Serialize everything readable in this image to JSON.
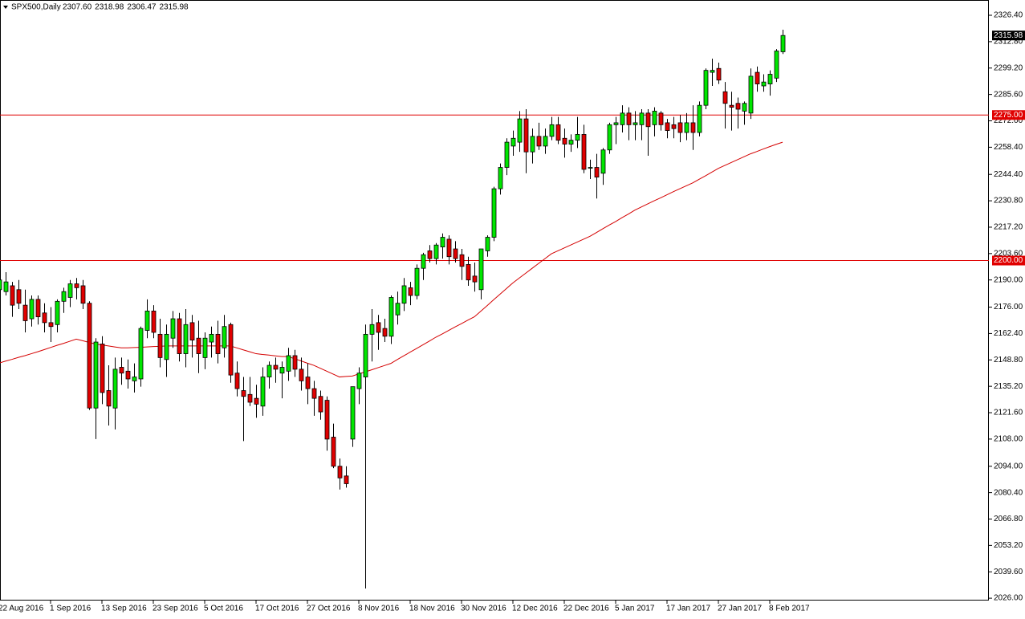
{
  "chart_data": {
    "type": "candlestick",
    "title": "SPX500,Daily",
    "header_ohlc": [
      "2307.60",
      "2318.98",
      "2306.47",
      "2315.98"
    ],
    "up_color": "#00e600",
    "down_color": "#e00000",
    "categories": [
      "22 Aug 2016",
      null,
      null,
      null,
      null,
      null,
      null,
      null,
      "1 Sep 2016",
      null,
      null,
      null,
      null,
      null,
      null,
      null,
      "13 Sep 2016",
      null,
      null,
      null,
      null,
      null,
      null,
      null,
      "23 Sep 2016",
      null,
      null,
      null,
      null,
      null,
      null,
      null,
      "5 Oct 2016",
      null,
      null,
      null,
      null,
      null,
      null,
      null,
      "17 Oct 2016",
      null,
      null,
      null,
      null,
      null,
      null,
      null,
      "27 Oct 2016",
      null,
      null,
      null,
      null,
      null,
      null,
      null,
      "8 Nov 2016",
      null,
      null,
      null,
      null,
      null,
      null,
      null,
      "18 Nov 2016",
      null,
      null,
      null,
      null,
      null,
      null,
      null,
      "30 Nov 2016",
      null,
      null,
      null,
      null,
      null,
      null,
      null,
      "12 Dec 2016",
      null,
      null,
      null,
      null,
      null,
      null,
      null,
      "22 Dec 2016",
      null,
      null,
      null,
      null,
      null,
      null,
      null,
      "5 Jan 2017",
      null,
      null,
      null,
      null,
      null,
      null,
      null,
      "17 Jan 2017",
      null,
      null,
      null,
      null,
      null,
      null,
      null,
      "27 Jan 2017",
      null,
      null,
      null,
      null,
      null,
      null,
      null,
      "8 Feb 2017",
      null,
      null
    ],
    "open": [
      2185,
      2184,
      2187,
      2185,
      2177,
      2170,
      2180,
      2173,
      2168,
      2167,
      2179,
      2181,
      2188,
      2187,
      2178,
      2124,
      2157,
      2133,
      2124,
      2145,
      2143,
      2138,
      2139,
      2164,
      2174,
      2162,
      2149,
      2160,
      2170,
      2152,
      2168,
      2160,
      2150,
      2158,
      2162,
      2155,
      2167,
      2142,
      2133,
      2131,
      2129,
      2125,
      2140,
      2146,
      2142,
      2143,
      2151,
      2144,
      2140,
      2134,
      2130,
      2128,
      2109,
      2094,
      2089,
      2108,
      2134,
      2140,
      2162,
      2168,
      2165,
      2161,
      2172,
      2178,
      2186,
      2182,
      2196,
      2205,
      2201,
      2207,
      2211,
      2206,
      2203,
      2198,
      2192,
      2185,
      2205,
      2212,
      2237,
      2248,
      2259,
      2261,
      2273,
      2256,
      2264,
      2259,
      2264,
      2270,
      2263,
      2260,
      2262,
      2265,
      2248,
      2248,
      2245,
      2257,
      2270,
      2270,
      2276,
      2270,
      2270,
      2276,
      2270,
      2276,
      2271,
      2270,
      2271,
      2266,
      2271,
      2266,
      2280,
      2297,
      2299,
      2287,
      2280,
      2281,
      2277,
      2276,
      2297,
      2290,
      2291,
      2294,
      2307.6
    ],
    "high": [
      2194,
      2194,
      2189,
      2190,
      2185,
      2182,
      2182,
      2178,
      2176,
      2180,
      2186,
      2190,
      2191,
      2190,
      2179,
      2160,
      2161,
      2146,
      2150,
      2150,
      2149,
      2147,
      2166,
      2180,
      2177,
      2170,
      2167,
      2174,
      2173,
      2175,
      2172,
      2169,
      2163,
      2166,
      2169,
      2172,
      2168,
      2148,
      2140,
      2140,
      2136,
      2145,
      2148,
      2150,
      2148,
      2155,
      2154,
      2150,
      2147,
      2138,
      2133,
      2130,
      2116,
      2098,
      2094,
      2135,
      2145,
      2167,
      2175,
      2172,
      2170,
      2182,
      2184,
      2191,
      2189,
      2198,
      2204,
      2208,
      2209,
      2214,
      2213,
      2210,
      2206,
      2202,
      2199,
      2206,
      2213,
      2238,
      2250,
      2263,
      2267,
      2277,
      2278,
      2268,
      2271,
      2268,
      2274,
      2274,
      2268,
      2265,
      2274,
      2270,
      2252,
      2255,
      2258,
      2271,
      2274,
      2280,
      2279,
      2277,
      2278,
      2278,
      2279,
      2277,
      2273,
      2274,
      2275,
      2276,
      2280,
      2282,
      2299,
      2304,
      2302,
      2292,
      2287,
      2284,
      2282,
      2299,
      2300,
      2296,
      2298,
      2309,
      2318.98
    ],
    "low": [
      2182,
      2182,
      2171,
      2175,
      2163,
      2166,
      2167,
      2163,
      2158,
      2163,
      2173,
      2176,
      2180,
      2175,
      2123,
      2108,
      2126,
      2115,
      2113,
      2136,
      2134,
      2132,
      2135,
      2160,
      2160,
      2145,
      2140,
      2155,
      2148,
      2145,
      2150,
      2142,
      2144,
      2150,
      2147,
      2150,
      2137,
      2130,
      2107,
      2125,
      2119,
      2120,
      2134,
      2137,
      2129,
      2138,
      2140,
      2133,
      2126,
      2120,
      2118,
      2102,
      2093,
      2082,
      2083,
      2104,
      2126,
      2031,
      2148,
      2154,
      2158,
      2157,
      2167,
      2174,
      2177,
      2180,
      2190,
      2199,
      2198,
      2201,
      2198,
      2199,
      2190,
      2187,
      2184,
      2180,
      2202,
      2210,
      2234,
      2244,
      2254,
      2256,
      2245,
      2250,
      2257,
      2255,
      2262,
      2260,
      2253,
      2256,
      2258,
      2245,
      2242,
      2232,
      2239,
      2255,
      2260,
      2266,
      2262,
      2262,
      2262,
      2254,
      2264,
      2267,
      2263,
      2263,
      2261,
      2262,
      2257,
      2264,
      2278,
      2290,
      2291,
      2268,
      2267,
      2268,
      2270,
      2273,
      2287,
      2287,
      2285,
      2292,
      2306.47
    ],
    "close": [
      2190,
      2189,
      2177,
      2178,
      2169,
      2180,
      2171,
      2168,
      2166,
      2179,
      2184,
      2188,
      2186,
      2178,
      2124,
      2158,
      2132,
      2125,
      2144,
      2142,
      2139,
      2140,
      2165,
      2174,
      2163,
      2150,
      2162,
      2170,
      2152,
      2167,
      2159,
      2152,
      2160,
      2162,
      2152,
      2166,
      2141,
      2134,
      2130,
      2127,
      2126,
      2140,
      2146,
      2144,
      2145,
      2151,
      2144,
      2138,
      2134,
      2129,
      2122,
      2108,
      2094,
      2088,
      2085,
      2135,
      2142,
      2162,
      2167,
      2163,
      2161,
      2181,
      2178,
      2187,
      2182,
      2196,
      2203,
      2201,
      2208,
      2212,
      2202,
      2201,
      2197,
      2190,
      2189,
      2206,
      2212,
      2237,
      2248,
      2261,
      2263,
      2273,
      2256,
      2264,
      2259,
      2264,
      2270,
      2262,
      2260,
      2262,
      2265,
      2247,
      2248,
      2243,
      2257,
      2270,
      2271,
      2276,
      2270,
      2271,
      2276,
      2269,
      2277,
      2270,
      2267,
      2268,
      2266,
      2271,
      2266,
      2280,
      2298,
      2298,
      2293,
      2281,
      2279,
      2278,
      2281,
      2295,
      2291,
      2292,
      2296,
      2308,
      2315.98
    ],
    "ma": {
      "color": "#d40000",
      "values": [
        2147.2,
        2148.2,
        2149.1,
        2150.1,
        2151,
        2152,
        2153,
        2154.1,
        2155.2,
        2156.3,
        2157.3,
        2158.4,
        2159.5,
        2158.7,
        2157.8,
        2157,
        2156.5,
        2156,
        2155.5,
        2155,
        2155,
        2155.2,
        2155.3,
        2155.5,
        2155.7,
        2155.8,
        2156,
        2156,
        2156,
        2156,
        2156,
        2156,
        2156,
        2156,
        2156,
        2156,
        2156,
        2155,
        2154,
        2153,
        2152,
        2151.6,
        2151.3,
        2150.9,
        2150.5,
        2150.5,
        2149.4,
        2148.3,
        2147.1,
        2146,
        2144.5,
        2143,
        2141.5,
        2140,
        2140.3,
        2140.5,
        2141.6,
        2142.6,
        2143.7,
        2144.8,
        2145.9,
        2147,
        2149,
        2150.9,
        2152.8,
        2154.7,
        2156.6,
        2158.5,
        2160.5,
        2162.2,
        2164,
        2165.8,
        2167.5,
        2169.3,
        2171,
        2173.9,
        2176.8,
        2179.8,
        2182.7,
        2185.6,
        2188.5,
        2191,
        2193.5,
        2196,
        2198.5,
        2201,
        2203.5,
        2205,
        2206.5,
        2208,
        2209.5,
        2211,
        2212.5,
        2214.4,
        2216.4,
        2218.3,
        2220.1,
        2222.1,
        2224,
        2226,
        2227.6,
        2229.2,
        2230.8,
        2232.3,
        2233.9,
        2235.5,
        2237,
        2238.5,
        2240,
        2241.9,
        2243.7,
        2245.6,
        2247.5,
        2249,
        2250.5,
        2252,
        2253.5,
        2255,
        2256.2,
        2257.5,
        2258.7,
        2259.9,
        2261
      ]
    },
    "hlines": [
      {
        "value": 2275,
        "label": "2275.00",
        "color": "#e00000"
      },
      {
        "value": 2200,
        "label": "2200.00",
        "color": "#e00000"
      }
    ],
    "last_price": {
      "value": 2315.98,
      "label": "2315.98"
    },
    "ylim": [
      2024.8,
      2332.2
    ],
    "yticks": [
      {
        "value": 2326.4,
        "label": "2326.40"
      },
      {
        "value": 2312.8,
        "label": "2312.80"
      },
      {
        "value": 2299.2,
        "label": "2299.20"
      },
      {
        "value": 2285.6,
        "label": "2285.60"
      },
      {
        "value": 2272,
        "label": "2272.00"
      },
      {
        "value": 2258.4,
        "label": "2258.40"
      },
      {
        "value": 2244.4,
        "label": "2244.40"
      },
      {
        "value": 2230.8,
        "label": "2230.80"
      },
      {
        "value": 2217.2,
        "label": "2217.20"
      },
      {
        "value": 2203.6,
        "label": "2203.60"
      },
      {
        "value": 2190,
        "label": "2190.00"
      },
      {
        "value": 2176,
        "label": "2176.00"
      },
      {
        "value": 2162.4,
        "label": "2162.40"
      },
      {
        "value": 2148.8,
        "label": "2148.80"
      },
      {
        "value": 2135.2,
        "label": "2135.20"
      },
      {
        "value": 2121.6,
        "label": "2121.60"
      },
      {
        "value": 2108,
        "label": "2108.00"
      },
      {
        "value": 2094,
        "label": "2094.00"
      },
      {
        "value": 2080.4,
        "label": "2080.40"
      },
      {
        "value": 2066.8,
        "label": "2066.80"
      },
      {
        "value": 2053.2,
        "label": "2053.20"
      },
      {
        "value": 2039.6,
        "label": "2039.60"
      },
      {
        "value": 2026,
        "label": "2026.00"
      }
    ]
  }
}
